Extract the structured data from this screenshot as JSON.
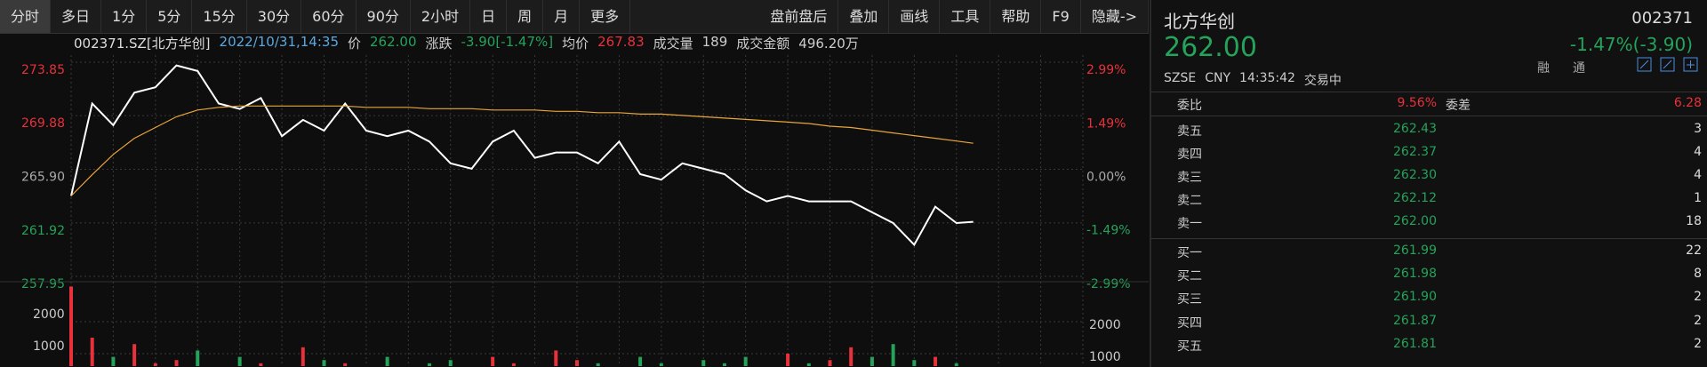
{
  "toolbar": {
    "left": [
      "分时",
      "多日",
      "1分",
      "5分",
      "15分",
      "30分",
      "60分",
      "90分",
      "2小时",
      "日",
      "周",
      "月",
      "更多"
    ],
    "right": [
      "盘前盘后",
      "叠加",
      "画线",
      "工具",
      "帮助",
      "F9",
      "隐藏->"
    ]
  },
  "info": {
    "symbol": "002371.SZ[北方华创]",
    "time": "2022/10/31,14:35",
    "price_label": "价",
    "price": "262.00",
    "change_label": "涨跌",
    "change": "-3.90[-1.47%]",
    "avg_label": "均价",
    "avg": "267.83",
    "volume_label": "成交量",
    "volume": "189",
    "amount_label": "成交金额",
    "amount": "496.20万"
  },
  "quote": {
    "name": "北方华创",
    "code": "002371",
    "price": "262.00",
    "change": "-1.47%(-3.90)",
    "exchange": "SZSE",
    "currency": "CNY",
    "time": "14:35:42",
    "status": "交易中",
    "tags": [
      "融",
      "通"
    ]
  },
  "order_book": {
    "ratio_label": "委比",
    "ratio": "9.56%",
    "diff_label": "委差",
    "diff": "6.28",
    "asks": [
      [
        "卖五",
        "262.43",
        "3"
      ],
      [
        "卖四",
        "262.37",
        "4"
      ],
      [
        "卖三",
        "262.30",
        "4"
      ],
      [
        "卖二",
        "262.12",
        "1"
      ],
      [
        "卖一",
        "262.00",
        "18"
      ]
    ],
    "bids": [
      [
        "买一",
        "261.99",
        "22"
      ],
      [
        "买二",
        "261.98",
        "8"
      ],
      [
        "买三",
        "261.90",
        "2"
      ],
      [
        "买四",
        "261.87",
        "2"
      ],
      [
        "买五",
        "261.81",
        "2"
      ]
    ]
  },
  "chart_data": [
    {
      "type": "line",
      "x": [
        0,
        5,
        10,
        15,
        20,
        25,
        30,
        35,
        40,
        45,
        50,
        55,
        60,
        65,
        70,
        75,
        80,
        85,
        90,
        95,
        100,
        105,
        110,
        115,
        120,
        125,
        130,
        135,
        140,
        145,
        150,
        155,
        160,
        165,
        170,
        175,
        180,
        185,
        190,
        195,
        200,
        205,
        210,
        214
      ],
      "series": [
        {
          "color": "#ffffff",
          "values": [
            263.92,
            270.78,
            269.17,
            271.59,
            271.99,
            273.61,
            273.2,
            270.78,
            270.38,
            271.19,
            268.36,
            269.57,
            268.77,
            270.78,
            268.77,
            268.36,
            268.77,
            267.96,
            266.34,
            265.94,
            267.96,
            268.77,
            266.75,
            267.15,
            267.15,
            266.34,
            267.96,
            265.54,
            265.13,
            266.34,
            265.94,
            265.54,
            264.33,
            263.52,
            263.92,
            263.52,
            263.52,
            263.52,
            262.71,
            261.91,
            260.29,
            263.12,
            261.91,
            262.0
          ]
        },
        {
          "color": "#e8a53a",
          "values": [
            263.92,
            265.5,
            267.0,
            268.2,
            269.0,
            269.8,
            270.3,
            270.5,
            270.6,
            270.6,
            270.6,
            270.6,
            270.6,
            270.6,
            270.5,
            270.5,
            270.5,
            270.4,
            270.4,
            270.4,
            270.3,
            270.3,
            270.3,
            270.2,
            270.2,
            270.1,
            270.1,
            270.0,
            270.0,
            269.9,
            269.8,
            269.7,
            269.6,
            269.5,
            269.4,
            269.3,
            269.1,
            269.0,
            268.8,
            268.6,
            268.4,
            268.2,
            268.0,
            267.83
          ]
        }
      ],
      "xlim": [
        0,
        240
      ],
      "xticks": [
        0,
        10,
        20,
        30,
        40,
        50,
        60,
        70,
        80,
        90,
        100,
        110,
        120,
        130,
        140,
        150,
        160,
        170,
        180,
        190,
        200,
        210,
        220,
        230,
        240
      ],
      "ylim": [
        257.95,
        273.85
      ],
      "yticks": [
        257.95,
        261.92,
        {
          "value": 265.9,
          "label": "265.90"
        },
        269.88,
        273.85
      ],
      "y2lim": [
        -2.99,
        2.99
      ],
      "y2ticks": [
        {
          "value": -2.99,
          "label": "-2.99%"
        },
        {
          "value": -1.49,
          "label": "-1.49%"
        },
        {
          "value": 0,
          "label": "0.00%"
        },
        {
          "value": 1.49,
          "label": "1.49%"
        },
        {
          "value": 2.99,
          "label": "2.99%"
        }
      ],
      "up_color": "#e8313a",
      "down_color": "#25a35a",
      "flat_color": "#aaaaaa",
      "grid": true
    },
    {
      "type": "bar",
      "x": [
        0,
        5,
        10,
        15,
        20,
        25,
        30,
        35,
        40,
        45,
        50,
        55,
        60,
        65,
        70,
        75,
        80,
        85,
        90,
        95,
        100,
        105,
        110,
        115,
        120,
        125,
        130,
        135,
        140,
        145,
        150,
        155,
        160,
        165,
        170,
        175,
        180,
        185,
        190,
        195,
        200,
        205,
        210,
        214
      ],
      "values": [
        3100,
        1500,
        900,
        1300,
        700,
        800,
        1100,
        600,
        900,
        700,
        500,
        1200,
        800,
        700,
        600,
        900,
        600,
        700,
        800,
        600,
        900,
        700,
        600,
        1100,
        800,
        700,
        600,
        900,
        700,
        600,
        800,
        700,
        900,
        600,
        1000,
        700,
        800,
        1200,
        900,
        1300,
        800,
        900,
        700,
        600
      ],
      "xlim": [
        0,
        240
      ],
      "ylim": [
        0,
        3140
      ],
      "yticks": [
        1000,
        2000
      ],
      "up_color": "#e8313a",
      "down_color": "#25a35a",
      "grid": true
    }
  ]
}
